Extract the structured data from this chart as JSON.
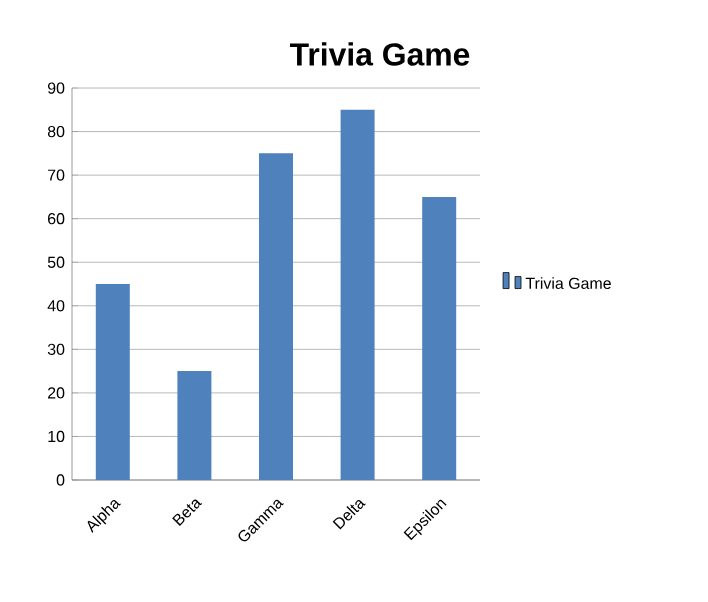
{
  "chart_data": {
    "type": "bar",
    "title": "Trivia Game",
    "categories": [
      "Alpha",
      "Beta",
      "Gamma",
      "Delta",
      "Epsilon"
    ],
    "series": [
      {
        "name": "Trivia Game",
        "color": "#4f81bd",
        "values": [
          45,
          25,
          75,
          85,
          65
        ]
      }
    ],
    "ylim": [
      0,
      90
    ],
    "yticks": [
      0,
      10,
      20,
      30,
      40,
      50,
      60,
      70,
      80,
      90
    ],
    "grid": "y",
    "legend": "right"
  }
}
